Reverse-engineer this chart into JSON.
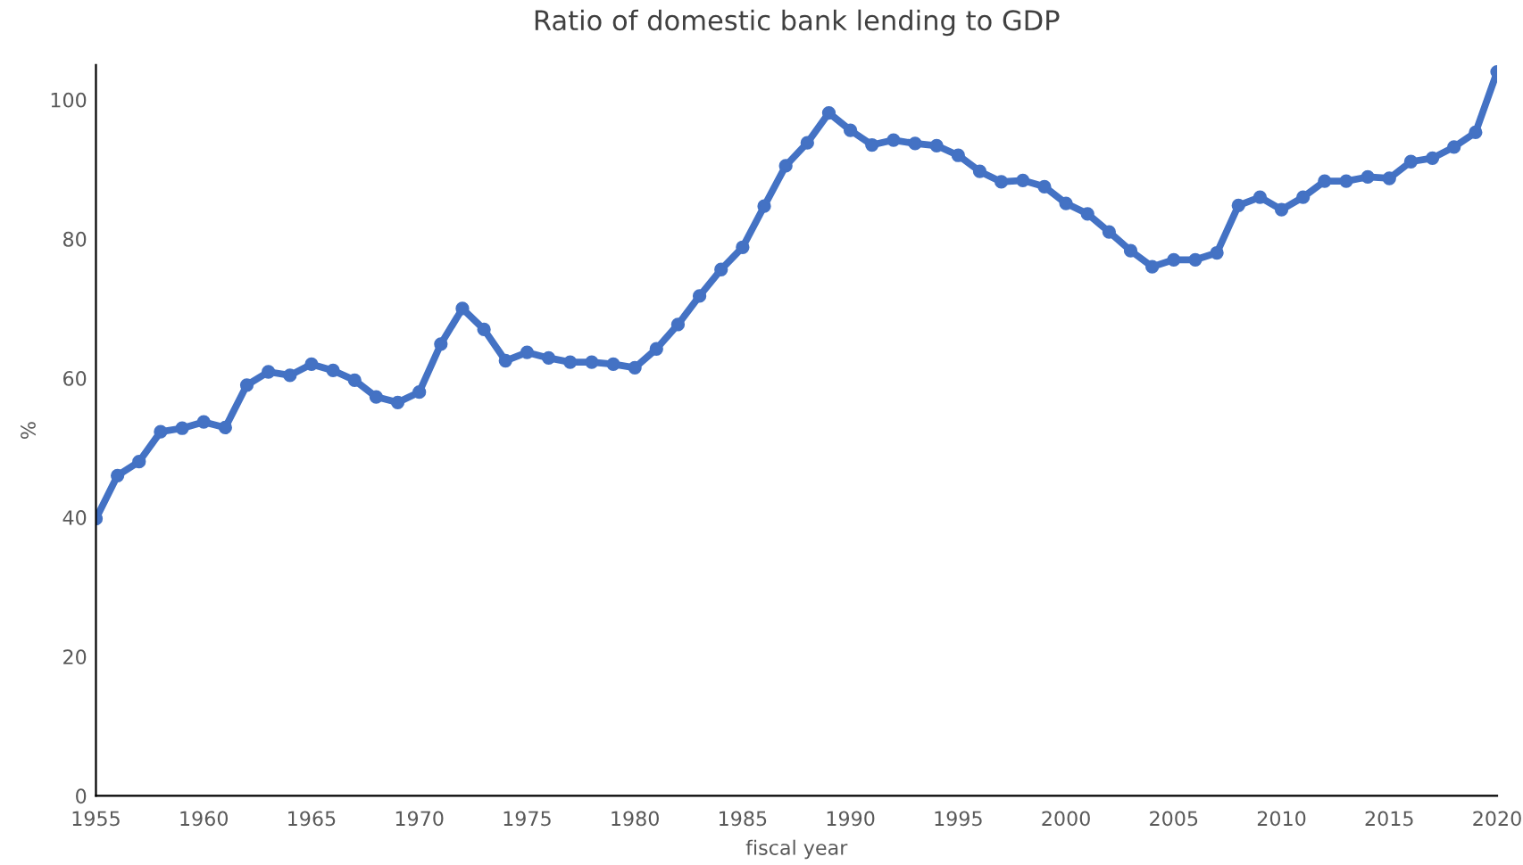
{
  "chart_data": {
    "type": "line",
    "title": "Ratio of domestic bank lending to GDP",
    "xlabel": "fiscal year",
    "ylabel": "%",
    "x": [
      1955,
      1956,
      1957,
      1958,
      1959,
      1960,
      1961,
      1962,
      1963,
      1964,
      1965,
      1966,
      1967,
      1968,
      1969,
      1970,
      1971,
      1972,
      1973,
      1974,
      1975,
      1976,
      1977,
      1978,
      1979,
      1980,
      1981,
      1982,
      1983,
      1984,
      1985,
      1986,
      1987,
      1988,
      1989,
      1990,
      1991,
      1992,
      1993,
      1994,
      1995,
      1996,
      1997,
      1998,
      1999,
      2000,
      2001,
      2002,
      2003,
      2004,
      2005,
      2006,
      2007,
      2008,
      2009,
      2010,
      2011,
      2012,
      2013,
      2014,
      2015,
      2016,
      2017,
      2018,
      2019,
      2020
    ],
    "series": [
      {
        "color": "#4472c4",
        "values": [
          39.8,
          46,
          48,
          52.3,
          52.8,
          53.7,
          52.9,
          59,
          60.9,
          60.4,
          62,
          61.1,
          59.7,
          57.3,
          56.5,
          58,
          64.9,
          70,
          67,
          62.5,
          63.7,
          62.9,
          62.3,
          62.3,
          62,
          61.5,
          64.2,
          67.7,
          71.8,
          75.6,
          78.8,
          84.7,
          90.5,
          93.8,
          98.1,
          95.6,
          93.5,
          94.2,
          93.7,
          93.4,
          92,
          89.7,
          88.2,
          88.4,
          87.5,
          85.1,
          83.6,
          81,
          78.3,
          76,
          77,
          77,
          78,
          84.8,
          86,
          84.2,
          86,
          88.3,
          88.3,
          88.9,
          88.7,
          91.1,
          91.6,
          93.2,
          95.3,
          104
        ]
      }
    ],
    "xlim": [
      1955,
      2020
    ],
    "xticks": [
      1955,
      1960,
      1965,
      1970,
      1975,
      1980,
      1985,
      1990,
      1995,
      2000,
      2005,
      2010,
      2015,
      2020
    ],
    "ylim": [
      0,
      105
    ],
    "yticks": [
      0,
      20,
      40,
      60,
      80,
      100
    ],
    "grid": false,
    "marker": "circle",
    "line_style": "solid"
  }
}
